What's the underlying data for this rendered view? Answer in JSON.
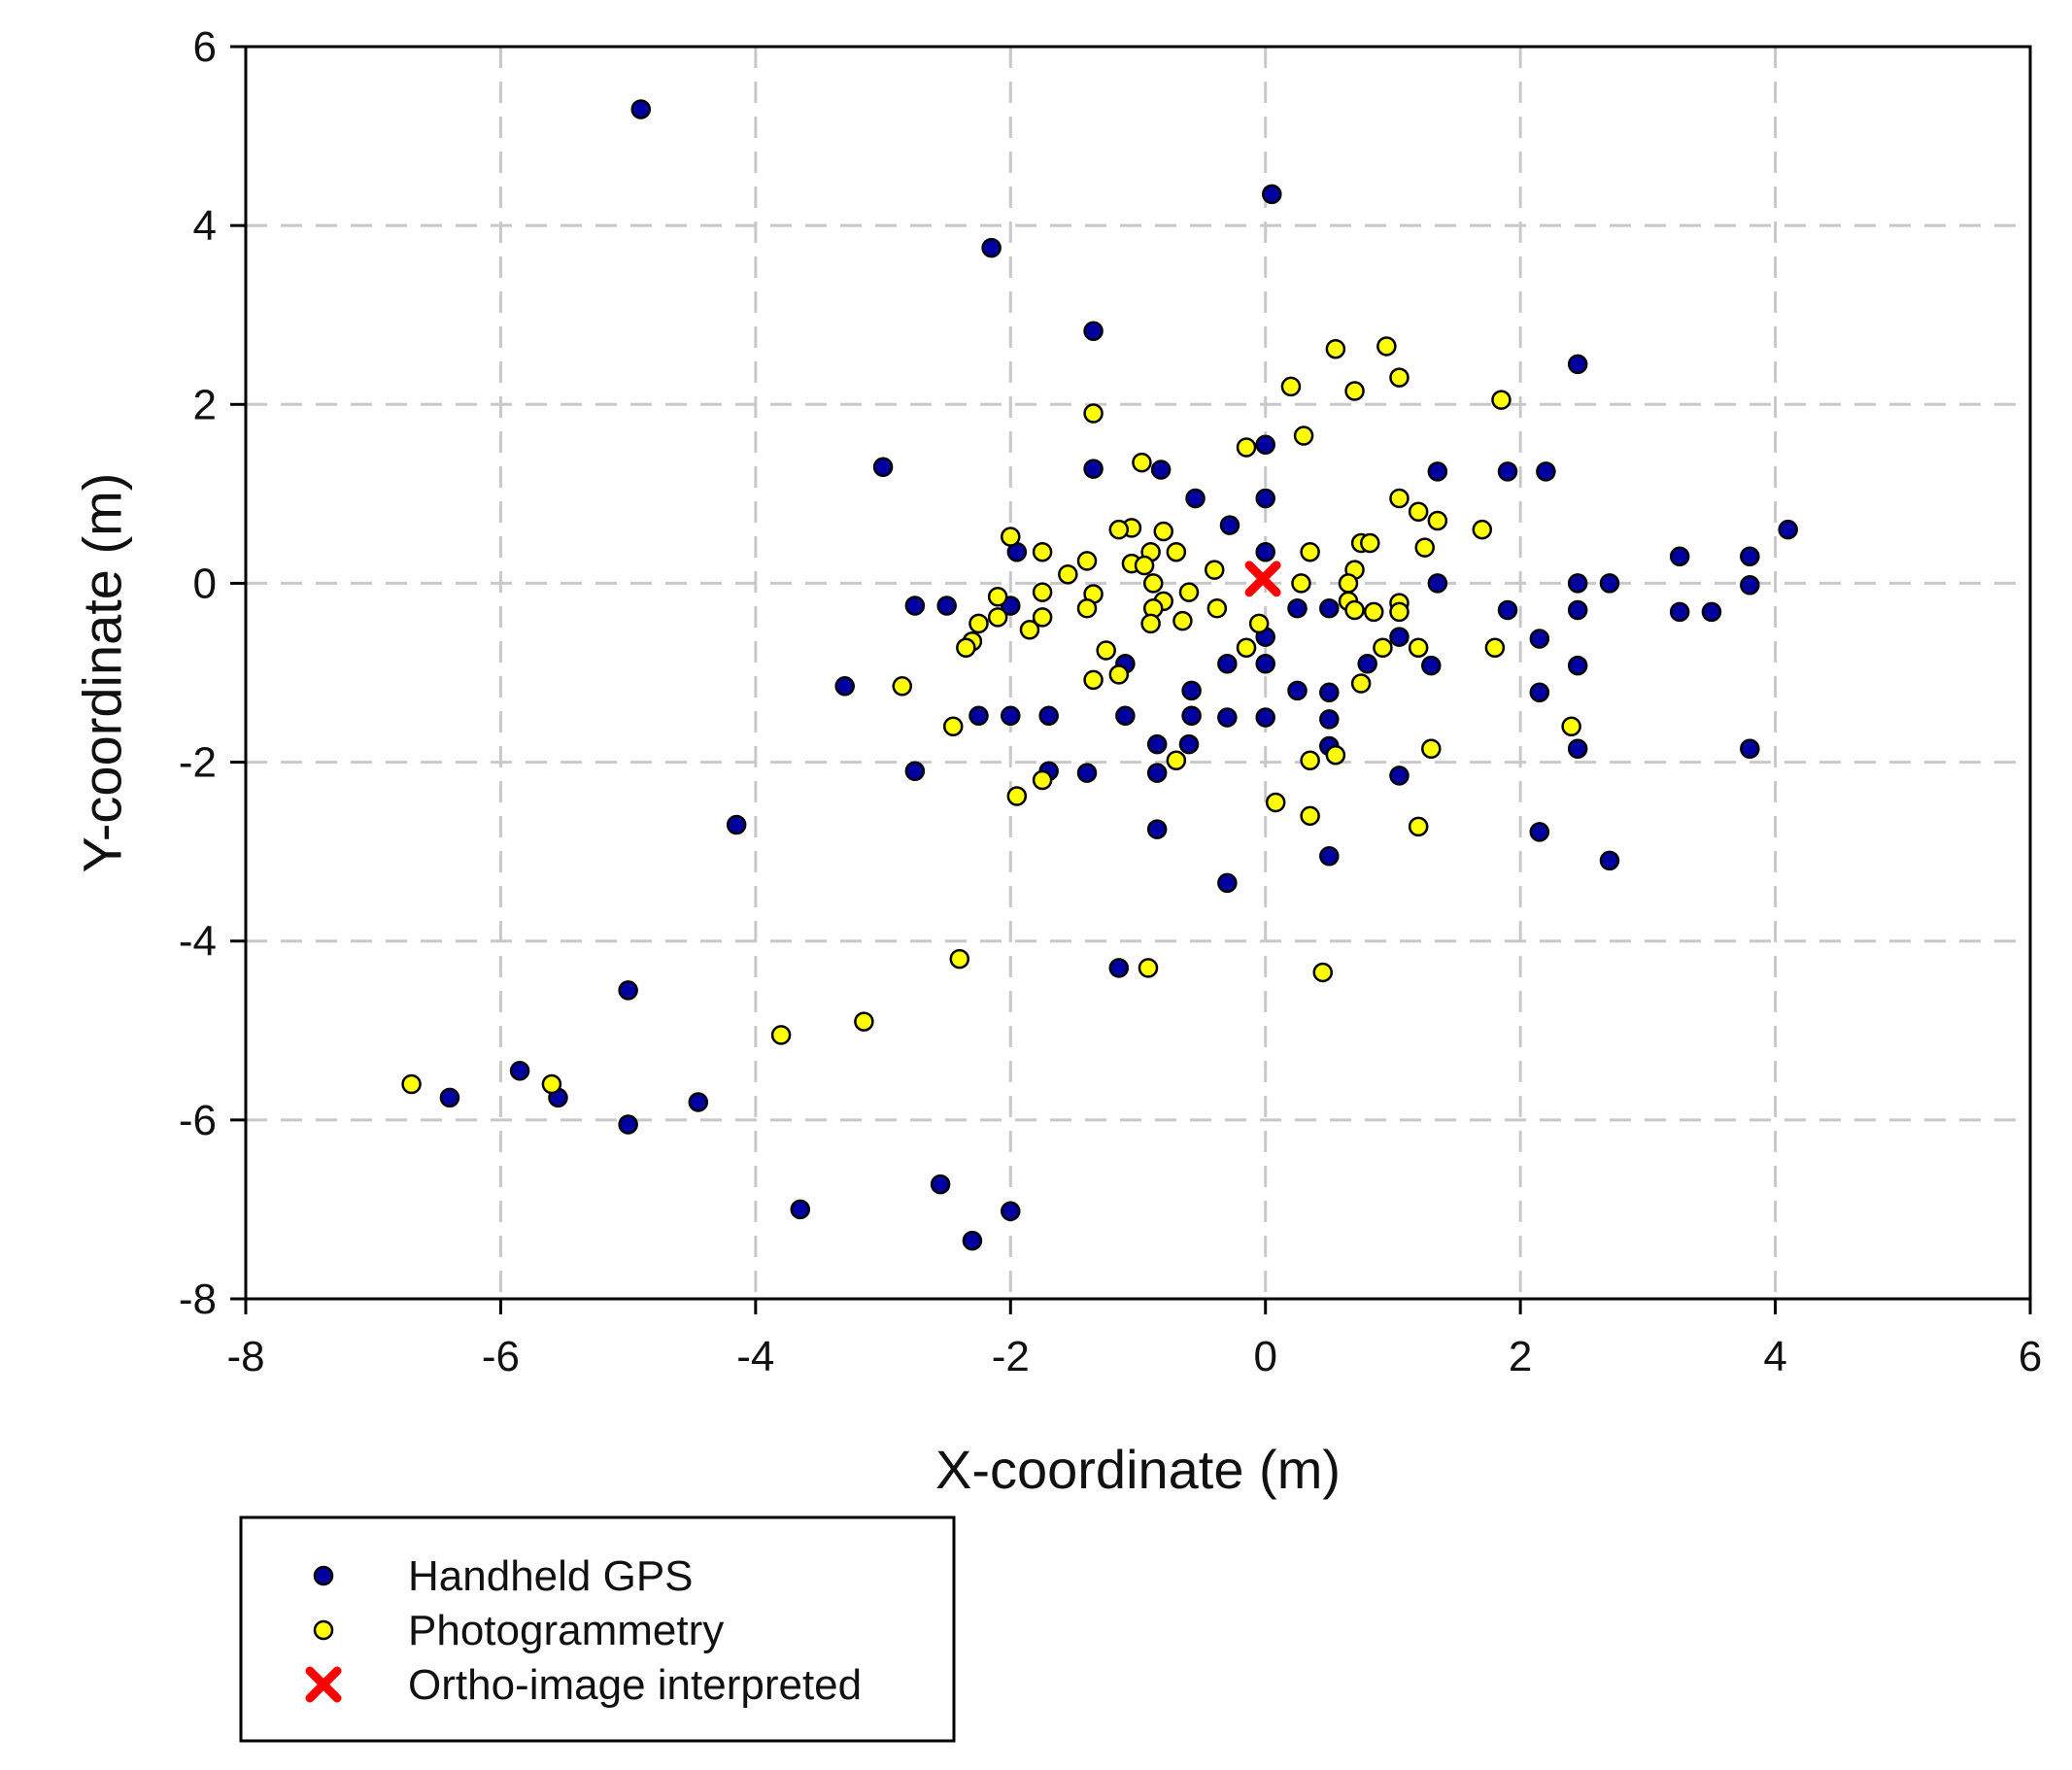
{
  "chart_data": {
    "type": "scatter",
    "xlabel": "X-coordinate (m)",
    "ylabel": "Y-coordinate (m)",
    "xlim": [
      -8,
      6
    ],
    "ylim": [
      -8,
      6
    ],
    "x_ticks": [
      "-8",
      "-6",
      "-4",
      "-2",
      "0",
      "2",
      "4",
      "6"
    ],
    "y_ticks": [
      "6",
      "4",
      "2",
      "0",
      "-2",
      "-4",
      "-6",
      "-8"
    ],
    "grid": true,
    "grid_style": "dashed",
    "legend_position": "bottom-left",
    "series": [
      {
        "name": "Handheld GPS",
        "marker": "circle",
        "color": "#0000a0",
        "points": [
          [
            -4.9,
            5.3
          ],
          [
            0.05,
            4.35
          ],
          [
            -2.15,
            3.75
          ],
          [
            -1.35,
            2.82
          ],
          [
            2.45,
            2.45
          ],
          [
            -3.0,
            1.3
          ],
          [
            -1.35,
            1.28
          ],
          [
            -0.82,
            1.27
          ],
          [
            0.0,
            1.55
          ],
          [
            1.35,
            1.25
          ],
          [
            1.9,
            1.25
          ],
          [
            2.2,
            1.25
          ],
          [
            -0.55,
            0.95
          ],
          [
            0.0,
            0.95
          ],
          [
            -0.28,
            0.65
          ],
          [
            4.1,
            0.6
          ],
          [
            3.25,
            0.3
          ],
          [
            3.8,
            0.3
          ],
          [
            -1.95,
            0.35
          ],
          [
            0.0,
            0.35
          ],
          [
            1.35,
            0.0
          ],
          [
            2.45,
            0.0
          ],
          [
            2.7,
            0.0
          ],
          [
            3.8,
            -0.02
          ],
          [
            -2.75,
            -0.25
          ],
          [
            -2.5,
            -0.25
          ],
          [
            -2.0,
            -0.25
          ],
          [
            0.25,
            -0.28
          ],
          [
            0.5,
            -0.28
          ],
          [
            1.9,
            -0.3
          ],
          [
            2.45,
            -0.3
          ],
          [
            3.25,
            -0.32
          ],
          [
            3.5,
            -0.32
          ],
          [
            0.0,
            -0.6
          ],
          [
            1.05,
            -0.6
          ],
          [
            2.15,
            -0.62
          ],
          [
            -1.1,
            -0.9
          ],
          [
            -0.3,
            -0.9
          ],
          [
            0.0,
            -0.9
          ],
          [
            0.8,
            -0.9
          ],
          [
            1.3,
            -0.92
          ],
          [
            2.45,
            -0.92
          ],
          [
            -3.3,
            -1.15
          ],
          [
            -0.58,
            -1.2
          ],
          [
            0.25,
            -1.2
          ],
          [
            0.5,
            -1.22
          ],
          [
            2.15,
            -1.22
          ],
          [
            -2.25,
            -1.48
          ],
          [
            -2.0,
            -1.48
          ],
          [
            -1.7,
            -1.48
          ],
          [
            -1.1,
            -1.48
          ],
          [
            -0.58,
            -1.48
          ],
          [
            -0.3,
            -1.5
          ],
          [
            0.0,
            -1.5
          ],
          [
            0.5,
            -1.52
          ],
          [
            -0.85,
            -1.8
          ],
          [
            -0.6,
            -1.8
          ],
          [
            0.5,
            -1.82
          ],
          [
            2.45,
            -1.85
          ],
          [
            3.8,
            -1.85
          ],
          [
            -2.75,
            -2.1
          ],
          [
            -1.7,
            -2.1
          ],
          [
            -1.4,
            -2.12
          ],
          [
            -0.85,
            -2.12
          ],
          [
            1.05,
            -2.15
          ],
          [
            -4.15,
            -2.7
          ],
          [
            -0.85,
            -2.75
          ],
          [
            2.15,
            -2.78
          ],
          [
            0.5,
            -3.05
          ],
          [
            2.7,
            -3.1
          ],
          [
            -0.3,
            -3.35
          ],
          [
            -1.15,
            -4.3
          ],
          [
            -5.0,
            -4.55
          ],
          [
            -5.85,
            -5.45
          ],
          [
            -6.4,
            -5.75
          ],
          [
            -5.55,
            -5.75
          ],
          [
            -4.45,
            -5.8
          ],
          [
            -5.0,
            -6.05
          ],
          [
            -2.55,
            -6.72
          ],
          [
            -3.65,
            -7.0
          ],
          [
            -2.0,
            -7.02
          ],
          [
            -2.3,
            -7.35
          ]
        ]
      },
      {
        "name": "Photogrammetry",
        "marker": "circle",
        "color": "#ffff00",
        "points": [
          [
            0.55,
            2.62
          ],
          [
            0.95,
            2.65
          ],
          [
            1.05,
            2.3
          ],
          [
            0.2,
            2.2
          ],
          [
            0.7,
            2.15
          ],
          [
            1.85,
            2.05
          ],
          [
            -1.35,
            1.9
          ],
          [
            0.3,
            1.65
          ],
          [
            -0.15,
            1.52
          ],
          [
            -0.97,
            1.35
          ],
          [
            1.05,
            0.95
          ],
          [
            1.2,
            0.8
          ],
          [
            1.35,
            0.7
          ],
          [
            -1.05,
            0.62
          ],
          [
            -1.15,
            0.6
          ],
          [
            -0.8,
            0.58
          ],
          [
            1.7,
            0.6
          ],
          [
            -2.0,
            0.52
          ],
          [
            0.75,
            0.45
          ],
          [
            0.82,
            0.45
          ],
          [
            1.25,
            0.4
          ],
          [
            -1.75,
            0.35
          ],
          [
            -0.9,
            0.35
          ],
          [
            -0.7,
            0.35
          ],
          [
            0.35,
            0.35
          ],
          [
            -1.4,
            0.25
          ],
          [
            -1.05,
            0.22
          ],
          [
            -0.95,
            0.2
          ],
          [
            -0.4,
            0.15
          ],
          [
            -1.55,
            0.1
          ],
          [
            0.7,
            0.15
          ],
          [
            -0.88,
            0.0
          ],
          [
            0.28,
            0.0
          ],
          [
            0.65,
            0.0
          ],
          [
            -1.75,
            -0.1
          ],
          [
            -1.35,
            -0.12
          ],
          [
            -0.6,
            -0.1
          ],
          [
            -2.1,
            -0.15
          ],
          [
            -0.8,
            -0.2
          ],
          [
            0.65,
            -0.2
          ],
          [
            1.05,
            -0.22
          ],
          [
            -1.4,
            -0.28
          ],
          [
            -0.88,
            -0.28
          ],
          [
            -0.38,
            -0.28
          ],
          [
            0.7,
            -0.3
          ],
          [
            0.85,
            -0.32
          ],
          [
            1.05,
            -0.32
          ],
          [
            -2.1,
            -0.38
          ],
          [
            -1.75,
            -0.38
          ],
          [
            -0.65,
            -0.42
          ],
          [
            -2.25,
            -0.45
          ],
          [
            -0.9,
            -0.45
          ],
          [
            -0.05,
            -0.45
          ],
          [
            -1.85,
            -0.52
          ],
          [
            -2.3,
            -0.65
          ],
          [
            -2.35,
            -0.72
          ],
          [
            -0.15,
            -0.72
          ],
          [
            0.92,
            -0.72
          ],
          [
            1.2,
            -0.72
          ],
          [
            1.8,
            -0.72
          ],
          [
            -1.25,
            -0.75
          ],
          [
            -1.15,
            -1.02
          ],
          [
            -1.35,
            -1.08
          ],
          [
            0.75,
            -1.12
          ],
          [
            -2.85,
            -1.15
          ],
          [
            -2.45,
            -1.6
          ],
          [
            2.4,
            -1.6
          ],
          [
            1.3,
            -1.85
          ],
          [
            0.55,
            -1.92
          ],
          [
            0.35,
            -1.98
          ],
          [
            -0.7,
            -1.98
          ],
          [
            -1.75,
            -2.2
          ],
          [
            -1.95,
            -2.38
          ],
          [
            0.08,
            -2.45
          ],
          [
            0.35,
            -2.6
          ],
          [
            1.2,
            -2.72
          ],
          [
            -2.4,
            -4.2
          ],
          [
            -0.92,
            -4.3
          ],
          [
            0.45,
            -4.35
          ],
          [
            -3.15,
            -4.9
          ],
          [
            -3.8,
            -5.05
          ],
          [
            -6.7,
            -5.6
          ],
          [
            -5.6,
            -5.6
          ]
        ]
      },
      {
        "name": "Ortho-image interpreted",
        "marker": "x",
        "color": "#ff0000",
        "points": [
          [
            -0.02,
            0.05
          ]
        ]
      }
    ]
  }
}
